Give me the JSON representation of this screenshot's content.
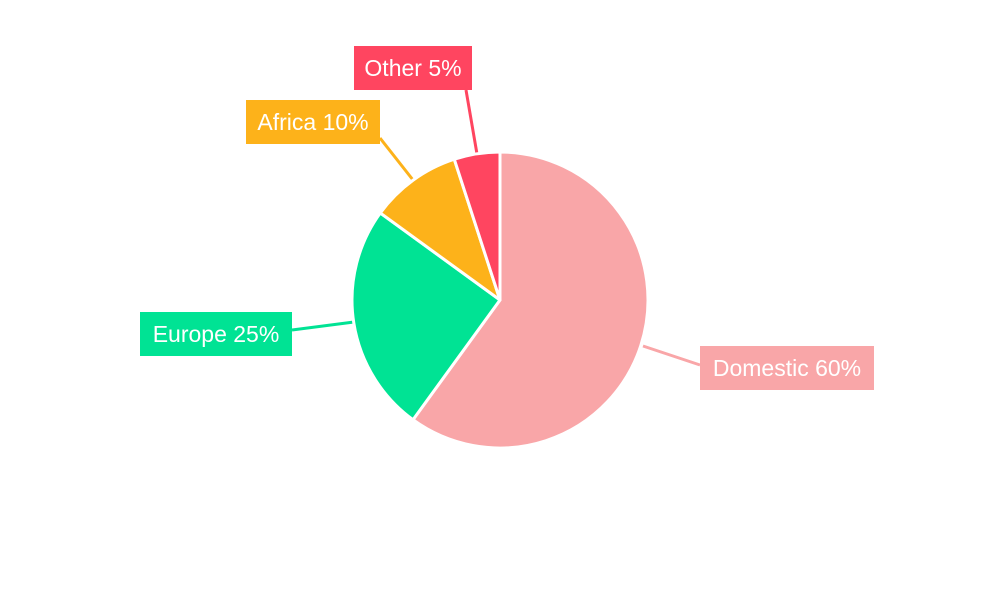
{
  "chart_data": {
    "type": "pie",
    "title": "",
    "slices": [
      {
        "category": "Domestic",
        "value": 60,
        "label": "Domestic 60%",
        "color": "#F9A6A8"
      },
      {
        "category": "Europe",
        "value": 25,
        "label": "Europe 25%",
        "color": "#00E394"
      },
      {
        "category": "Africa",
        "value": 10,
        "label": "Africa 10%",
        "color": "#FDB21A"
      },
      {
        "category": "Other",
        "value": 5,
        "label": "Other 5%",
        "color": "#FF4560"
      }
    ],
    "direction": "clockwise",
    "start": "top",
    "legend": "none",
    "label_style": "outside-boxed-with-leader-lines"
  }
}
